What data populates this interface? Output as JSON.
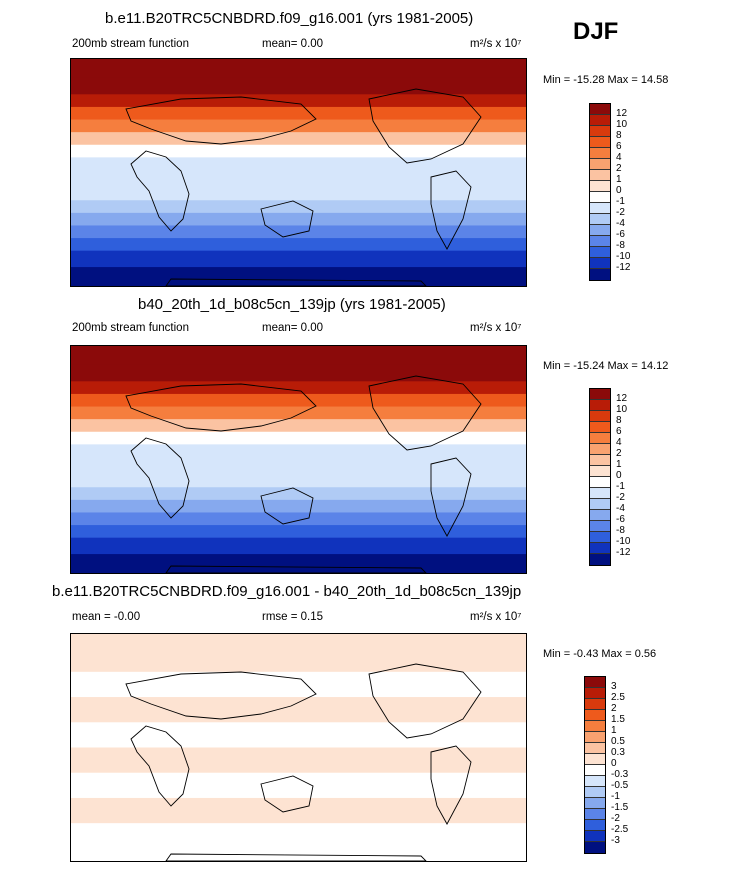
{
  "season": "DJF",
  "chart_data": [
    {
      "type": "heatmap",
      "title": "b.e11.B20TRC5CNBDRD.f09_g16.001 (yrs 1981-2005)",
      "left_label": "200mb stream function",
      "center_label": "mean=   0.00",
      "units": "m²/s x 10⁷",
      "min_max": "Min = -15.28 Max =  14.58",
      "colorbar": {
        "labels": [
          "12",
          "10",
          "8",
          "6",
          "4",
          "2",
          "1",
          "0",
          "-1",
          "-2",
          "-4",
          "-6",
          "-8",
          "-10",
          "-12"
        ],
        "colors": [
          "#8b0a0a",
          "#b81c07",
          "#d93a0d",
          "#ee5a1c",
          "#f57e3e",
          "#f9a270",
          "#fbc3a2",
          "#fde3d2",
          "#ffffff",
          "#d6e6fb",
          "#b0cbf5",
          "#86a9ee",
          "#5b84e8",
          "#2f5fdc",
          "#1033bd",
          "#001080"
        ]
      },
      "field_bands_lat_to_level": [
        [
          90,
          0
        ],
        [
          75,
          0
        ],
        [
          62,
          1
        ],
        [
          52,
          3
        ],
        [
          42,
          4
        ],
        [
          32,
          6
        ],
        [
          22,
          8
        ],
        [
          12,
          9
        ],
        [
          0,
          9
        ],
        [
          -12,
          9
        ],
        [
          -22,
          10
        ],
        [
          -32,
          11
        ],
        [
          -42,
          12
        ],
        [
          -52,
          13
        ],
        [
          -62,
          14
        ],
        [
          -75,
          15
        ],
        [
          -90,
          15
        ]
      ]
    },
    {
      "type": "heatmap",
      "title": "b40_20th_1d_b08c5cn_139jp (yrs 1981-2005)",
      "left_label": "200mb stream function",
      "center_label": "mean=   0.00",
      "units": "m²/s x 10⁷",
      "min_max": "Min = -15.24 Max =  14.12",
      "colorbar": {
        "labels": [
          "12",
          "10",
          "8",
          "6",
          "4",
          "2",
          "1",
          "0",
          "-1",
          "-2",
          "-4",
          "-6",
          "-8",
          "-10",
          "-12"
        ],
        "colors": [
          "#8b0a0a",
          "#b81c07",
          "#d93a0d",
          "#ee5a1c",
          "#f57e3e",
          "#f9a270",
          "#fbc3a2",
          "#fde3d2",
          "#ffffff",
          "#d6e6fb",
          "#b0cbf5",
          "#86a9ee",
          "#5b84e8",
          "#2f5fdc",
          "#1033bd",
          "#001080"
        ]
      },
      "field_bands_lat_to_level": [
        [
          90,
          0
        ],
        [
          75,
          0
        ],
        [
          62,
          1
        ],
        [
          52,
          3
        ],
        [
          42,
          4
        ],
        [
          32,
          6
        ],
        [
          22,
          8
        ],
        [
          12,
          9
        ],
        [
          0,
          9
        ],
        [
          -12,
          9
        ],
        [
          -22,
          10
        ],
        [
          -32,
          11
        ],
        [
          -42,
          12
        ],
        [
          -52,
          13
        ],
        [
          -62,
          14
        ],
        [
          -75,
          15
        ],
        [
          -90,
          15
        ]
      ]
    },
    {
      "type": "heatmap",
      "title": "b.e11.B20TRC5CNBDRD.f09_g16.001 - b40_20th_1d_b08c5cn_139jp",
      "left_label": "mean =  -0.00",
      "center_label": "rmse =   0.15",
      "units": "m²/s x 10⁷",
      "min_max": "Min =  -0.43 Max =   0.56",
      "colorbar": {
        "labels": [
          "3",
          "2.5",
          "2",
          "1.5",
          "1",
          "0.5",
          "0.3",
          "0",
          "-0.3",
          "-0.5",
          "-1",
          "-1.5",
          "-2",
          "-2.5",
          "-3"
        ],
        "colors": [
          "#8b0a0a",
          "#b81c07",
          "#d93a0d",
          "#ee5a1c",
          "#f57e3e",
          "#f9a270",
          "#fbc3a2",
          "#fde3d2",
          "#ffffff",
          "#d6e6fb",
          "#b0cbf5",
          "#86a9ee",
          "#5b84e8",
          "#2f5fdc",
          "#1033bd",
          "#001080"
        ]
      },
      "field_bands_lat_to_level": [
        [
          90,
          7
        ],
        [
          60,
          8
        ],
        [
          40,
          7
        ],
        [
          20,
          8
        ],
        [
          0,
          7
        ],
        [
          -20,
          8
        ],
        [
          -40,
          7
        ],
        [
          -60,
          8
        ],
        [
          -90,
          7
        ]
      ]
    }
  ]
}
